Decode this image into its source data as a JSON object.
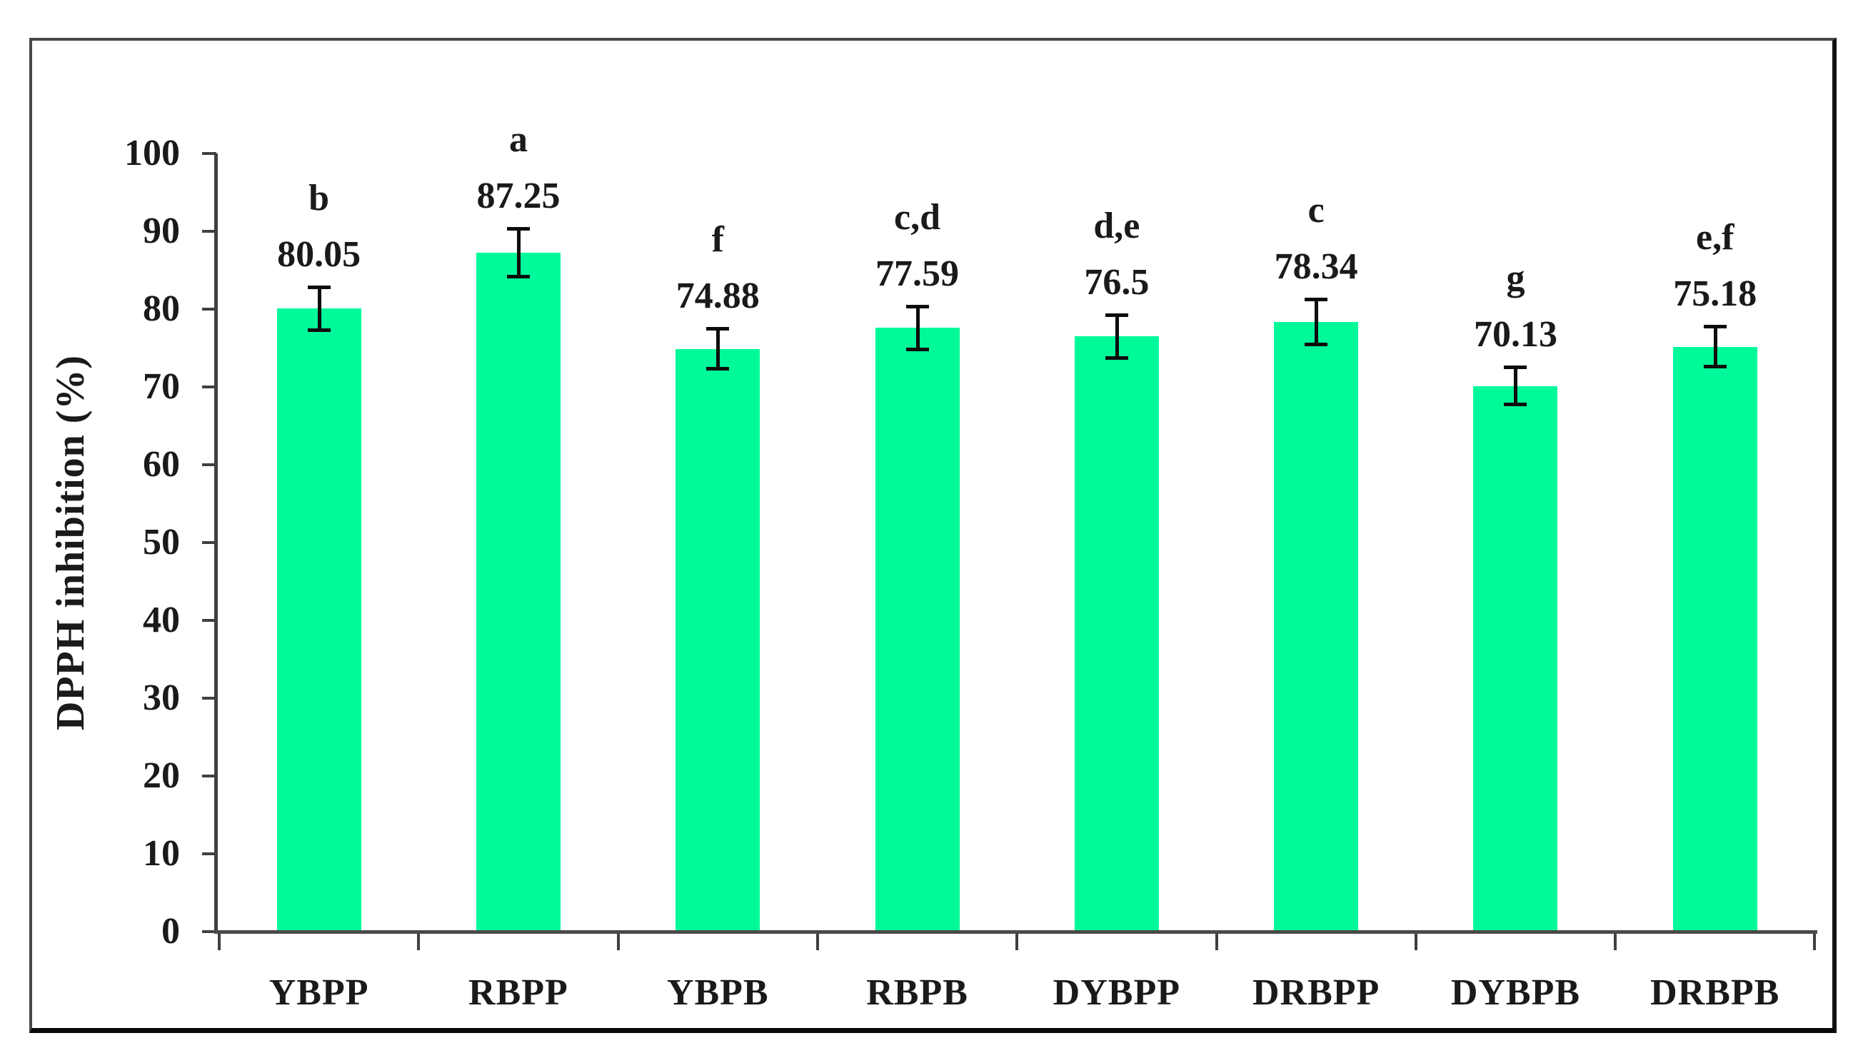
{
  "figure": {
    "background_color": "#ffffff",
    "border_color": "#333333"
  },
  "chart_data": {
    "type": "bar",
    "title": "",
    "xlabel": "",
    "ylabel": "DPPH inhibition (%)",
    "categories": [
      "YBPP",
      "RBPP",
      "YBPB",
      "RBPB",
      "DYBPP",
      "DRBPP",
      "DYBPB",
      "DRBPB"
    ],
    "values": [
      80.05,
      87.25,
      74.88,
      77.59,
      76.5,
      78.34,
      70.13,
      75.18
    ],
    "value_labels": [
      "80.05",
      "87.25",
      "74.88",
      "77.59",
      "76.5",
      "78.34",
      "70.13",
      "75.18"
    ],
    "sig_letters": [
      "b",
      "a",
      "f",
      "c,d",
      "d,e",
      "c",
      "g",
      "e,f"
    ],
    "errors": [
      2.8,
      3.1,
      2.6,
      2.8,
      2.8,
      2.9,
      2.4,
      2.6
    ],
    "error_bar_style": "symmetric, capped",
    "ylim": [
      0,
      100
    ],
    "yticks": [
      0,
      10,
      20,
      30,
      40,
      50,
      60,
      70,
      80,
      90,
      100
    ],
    "grid": false,
    "legend": null,
    "bar_color": "#00FA9A",
    "axis_color": "#404040",
    "baseline_color": "#4a4a4a",
    "error_bar_color": "#0d0d0d",
    "text_color": "#1a1a1a"
  }
}
